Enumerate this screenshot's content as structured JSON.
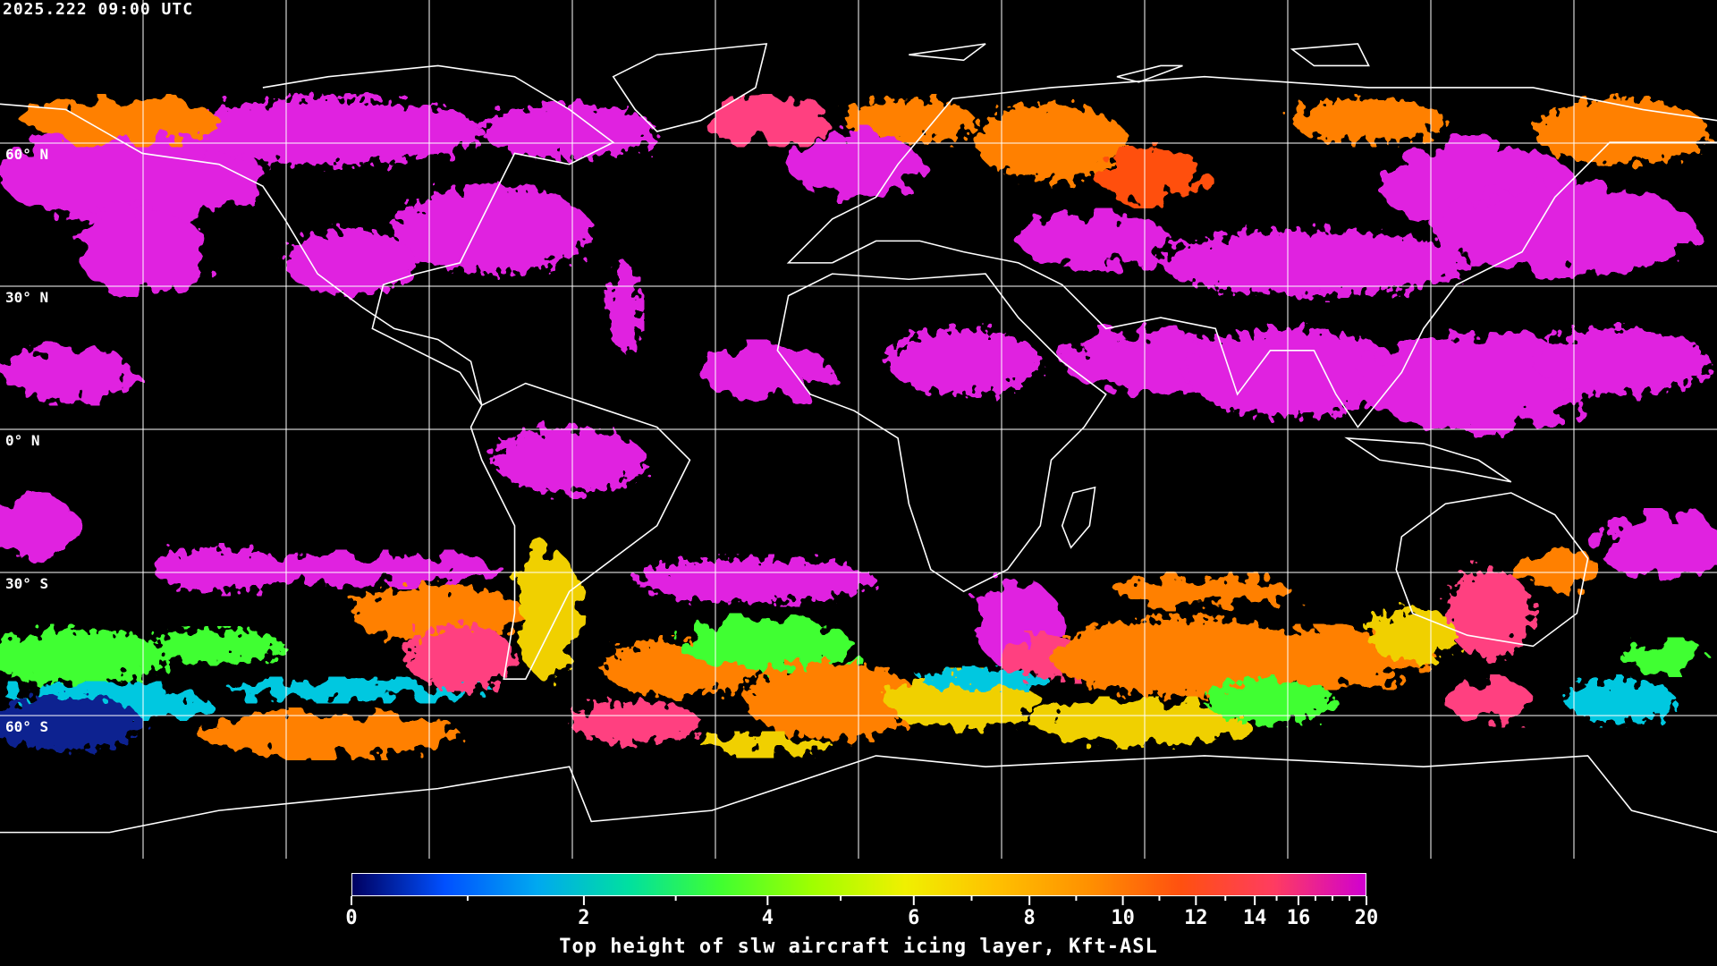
{
  "timestamp": "2025.222 09:00 UTC",
  "lat_labels": [
    "60° N",
    "30° N",
    "0° N",
    "30° S",
    "60° S"
  ],
  "colorbar": {
    "title": "Top height of slw aircraft icing layer, Kft-ASL",
    "ticks": [
      "0",
      "2",
      "4",
      "6",
      "8",
      "10",
      "12",
      "14",
      "16",
      "20"
    ],
    "range": [
      0,
      20
    ],
    "colors": [
      "#000060",
      "#0050ff",
      "#00a8f0",
      "#00e0a0",
      "#40ff30",
      "#a0ff00",
      "#f0f000",
      "#ffc000",
      "#ff9000",
      "#ff5010",
      "#ff3c60",
      "#d000d0"
    ]
  },
  "map": {
    "projection": "equirectangular",
    "grid_spacing_deg": 30,
    "coastline_color": "#ffffff",
    "background": "#000000"
  }
}
